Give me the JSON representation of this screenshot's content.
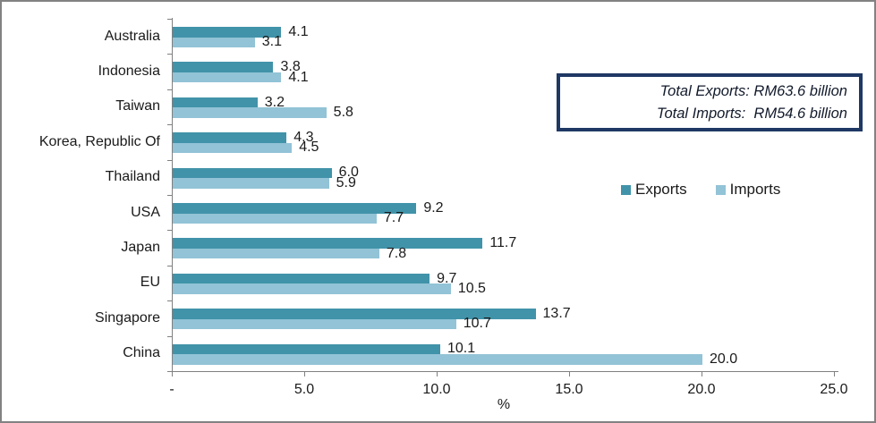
{
  "frame": {
    "border_color": "#828282",
    "background": "#FFFFFF"
  },
  "info_box": {
    "line1": "Total Exports: RM63.6 billion",
    "line2": "Total Imports:  RM54.6 billion",
    "border_color": "#1F3864"
  },
  "chart_data": {
    "type": "bar",
    "orientation": "horizontal",
    "categories": [
      "Australia",
      "Indonesia",
      "Taiwan",
      "Korea, Republic Of",
      "Thailand",
      "USA",
      "Japan",
      "EU",
      "Singapore",
      "China"
    ],
    "series": [
      {
        "name": "Exports",
        "color": "#4193A9",
        "values": [
          4.1,
          3.8,
          3.2,
          4.3,
          6.0,
          9.2,
          11.7,
          9.7,
          13.7,
          10.1
        ]
      },
      {
        "name": "Imports",
        "color": "#92C3D6",
        "values": [
          3.1,
          4.1,
          5.8,
          4.5,
          5.9,
          7.7,
          7.8,
          10.5,
          10.7,
          20.0
        ]
      }
    ],
    "xlabel": "%",
    "x_ticks": [
      "-",
      "5.0",
      "10.0",
      "15.0",
      "20.0",
      "25.0"
    ],
    "xlim": [
      0,
      25
    ],
    "grid": false,
    "legend_position": "middle-right",
    "value_labels_shown": true,
    "axis_color": "#808080"
  }
}
